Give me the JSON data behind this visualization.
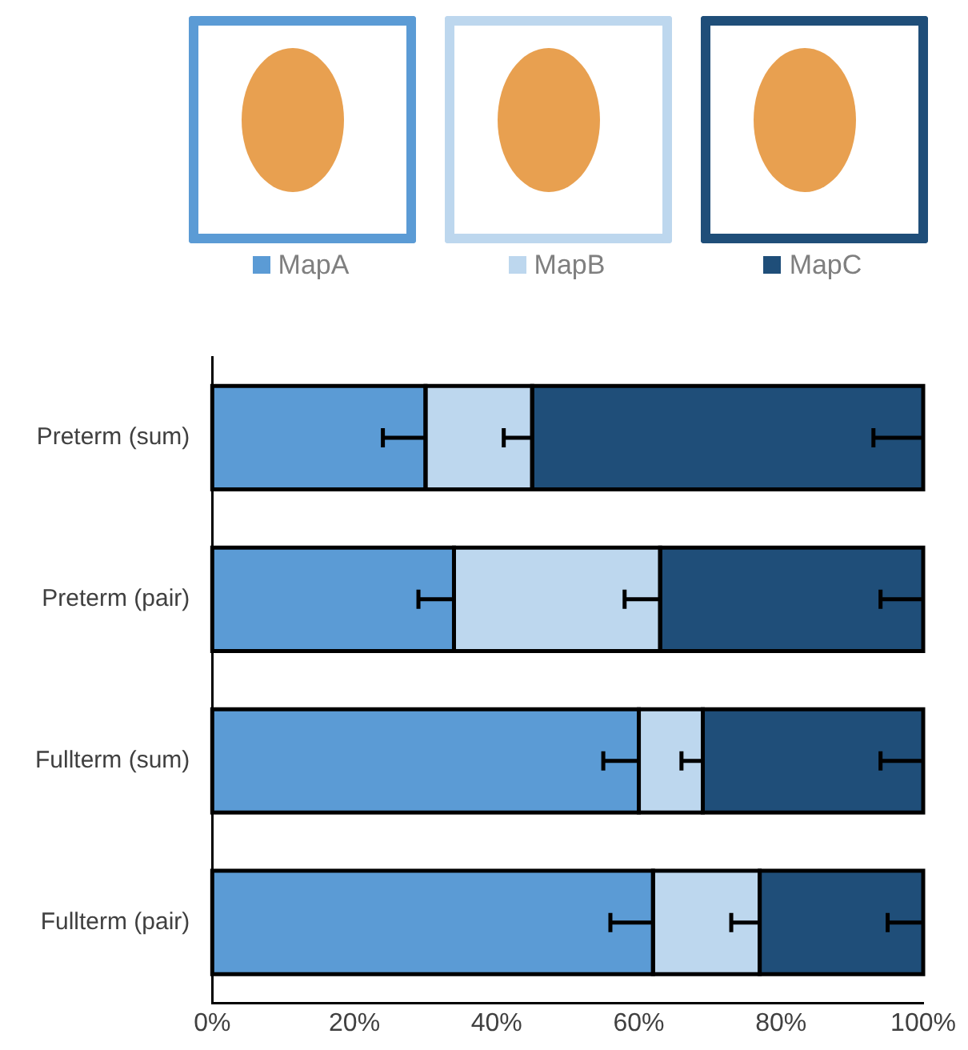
{
  "chart_data": {
    "type": "bar",
    "orientation": "horizontal",
    "stacked": true,
    "categories": [
      "Preterm (sum)",
      "Preterm (pair)",
      "Fullterm (sum)",
      "Fullterm (pair)"
    ],
    "series": [
      {
        "name": "MapA",
        "color": "#5b9bd5",
        "values": [
          30,
          34,
          60,
          62
        ],
        "errors": [
          [
            24,
            30
          ],
          [
            29,
            34
          ],
          [
            55,
            60
          ],
          [
            56,
            62
          ]
        ]
      },
      {
        "name": "MapB",
        "color": "#bdd7ee",
        "values": [
          15,
          29,
          9,
          15
        ],
        "errors": [
          [
            41,
            45
          ],
          [
            58,
            63
          ],
          [
            66,
            69
          ],
          [
            73,
            77
          ]
        ]
      },
      {
        "name": "MapC",
        "color": "#1f4e79",
        "values": [
          55,
          37,
          31,
          23
        ],
        "errors": [
          [
            93,
            100
          ],
          [
            94,
            100
          ],
          [
            94,
            100
          ],
          [
            95,
            100
          ]
        ]
      }
    ],
    "xlim": [
      0,
      100
    ],
    "xticks": [
      {
        "value": 0,
        "label": "0%"
      },
      {
        "value": 20,
        "label": "20%"
      },
      {
        "value": 40,
        "label": "40%"
      },
      {
        "value": 60,
        "label": "60%"
      },
      {
        "value": 80,
        "label": "80%"
      },
      {
        "value": 100,
        "label": "100%"
      }
    ],
    "grid": false,
    "legend": "top"
  }
}
